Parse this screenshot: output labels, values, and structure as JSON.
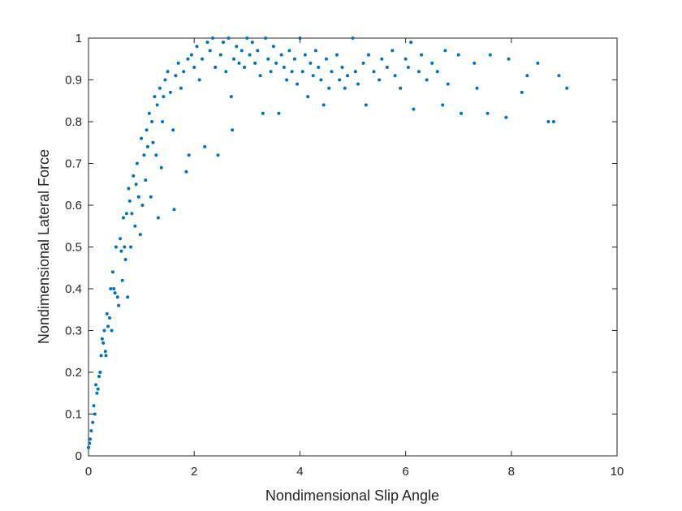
{
  "chart_data": {
    "type": "scatter",
    "title": "",
    "xlabel": "Nondimensional Slip Angle",
    "ylabel": "Nondimensional Lateral Force",
    "xlim": [
      0,
      10
    ],
    "ylim": [
      0,
      1
    ],
    "xticks": [
      0,
      2,
      4,
      6,
      8,
      10
    ],
    "yticks": [
      0,
      0.1,
      0.2,
      0.3,
      0.4,
      0.5,
      0.6,
      0.7,
      0.8,
      0.9,
      1
    ],
    "grid": false,
    "legend": "none",
    "marker_color": "#0072BD",
    "points": [
      [
        0.0,
        0.02
      ],
      [
        0.02,
        0.03
      ],
      [
        0.03,
        0.04
      ],
      [
        0.05,
        0.06
      ],
      [
        0.08,
        0.08
      ],
      [
        0.1,
        0.12
      ],
      [
        0.12,
        0.1
      ],
      [
        0.14,
        0.17
      ],
      [
        0.16,
        0.15
      ],
      [
        0.18,
        0.16
      ],
      [
        0.2,
        0.19
      ],
      [
        0.22,
        0.2
      ],
      [
        0.24,
        0.24
      ],
      [
        0.26,
        0.28
      ],
      [
        0.28,
        0.27
      ],
      [
        0.3,
        0.3
      ],
      [
        0.32,
        0.25
      ],
      [
        0.33,
        0.24
      ],
      [
        0.35,
        0.34
      ],
      [
        0.37,
        0.31
      ],
      [
        0.4,
        0.33
      ],
      [
        0.42,
        0.4
      ],
      [
        0.44,
        0.3
      ],
      [
        0.46,
        0.44
      ],
      [
        0.48,
        0.4
      ],
      [
        0.5,
        0.39
      ],
      [
        0.52,
        0.5
      ],
      [
        0.55,
        0.38
      ],
      [
        0.57,
        0.36
      ],
      [
        0.6,
        0.52
      ],
      [
        0.62,
        0.49
      ],
      [
        0.64,
        0.42
      ],
      [
        0.66,
        0.57
      ],
      [
        0.68,
        0.5
      ],
      [
        0.7,
        0.47
      ],
      [
        0.72,
        0.58
      ],
      [
        0.74,
        0.38
      ],
      [
        0.76,
        0.64
      ],
      [
        0.78,
        0.61
      ],
      [
        0.8,
        0.5
      ],
      [
        0.82,
        0.58
      ],
      [
        0.85,
        0.67
      ],
      [
        0.88,
        0.55
      ],
      [
        0.9,
        0.65
      ],
      [
        0.92,
        0.7
      ],
      [
        0.95,
        0.62
      ],
      [
        0.98,
        0.53
      ],
      [
        1.0,
        0.76
      ],
      [
        1.02,
        0.6
      ],
      [
        1.05,
        0.72
      ],
      [
        1.08,
        0.66
      ],
      [
        1.1,
        0.78
      ],
      [
        1.12,
        0.74
      ],
      [
        1.15,
        0.82
      ],
      [
        1.18,
        0.62
      ],
      [
        1.2,
        0.8
      ],
      [
        1.22,
        0.75
      ],
      [
        1.25,
        0.86
      ],
      [
        1.28,
        0.72
      ],
      [
        1.3,
        0.84
      ],
      [
        1.32,
        0.57
      ],
      [
        1.35,
        0.88
      ],
      [
        1.38,
        0.69
      ],
      [
        1.4,
        0.8
      ],
      [
        1.42,
        0.86
      ],
      [
        1.45,
        0.9
      ],
      [
        1.5,
        0.92
      ],
      [
        1.55,
        0.87
      ],
      [
        1.6,
        0.78
      ],
      [
        1.62,
        0.59
      ],
      [
        1.65,
        0.91
      ],
      [
        1.7,
        0.94
      ],
      [
        1.75,
        0.88
      ],
      [
        1.8,
        0.92
      ],
      [
        1.85,
        0.68
      ],
      [
        1.88,
        0.95
      ],
      [
        1.9,
        0.72
      ],
      [
        1.95,
        0.96
      ],
      [
        2.0,
        0.93
      ],
      [
        2.05,
        0.98
      ],
      [
        2.1,
        0.9
      ],
      [
        2.15,
        0.95
      ],
      [
        2.2,
        0.74
      ],
      [
        2.25,
        0.99
      ],
      [
        2.3,
        0.97
      ],
      [
        2.35,
        1.0
      ],
      [
        2.4,
        0.93
      ],
      [
        2.45,
        0.72
      ],
      [
        2.5,
        0.96
      ],
      [
        2.55,
        0.99
      ],
      [
        2.6,
        0.92
      ],
      [
        2.65,
        1.0
      ],
      [
        2.7,
        0.86
      ],
      [
        2.72,
        0.78
      ],
      [
        2.75,
        0.95
      ],
      [
        2.8,
        0.98
      ],
      [
        2.85,
        0.94
      ],
      [
        2.9,
        0.97
      ],
      [
        2.95,
        0.93
      ],
      [
        3.0,
        1.0
      ],
      [
        3.05,
        0.96
      ],
      [
        3.1,
        0.99
      ],
      [
        3.15,
        0.94
      ],
      [
        3.2,
        0.97
      ],
      [
        3.25,
        0.91
      ],
      [
        3.3,
        0.82
      ],
      [
        3.35,
        1.0
      ],
      [
        3.4,
        0.95
      ],
      [
        3.45,
        0.92
      ],
      [
        3.5,
        0.98
      ],
      [
        3.55,
        0.94
      ],
      [
        3.6,
        0.82
      ],
      [
        3.65,
        0.96
      ],
      [
        3.7,
        0.93
      ],
      [
        3.75,
        0.9
      ],
      [
        3.8,
        0.97
      ],
      [
        3.85,
        0.92
      ],
      [
        3.9,
        0.95
      ],
      [
        3.95,
        0.89
      ],
      [
        4.0,
        1.0
      ],
      [
        4.05,
        0.92
      ],
      [
        4.1,
        0.96
      ],
      [
        4.15,
        0.86
      ],
      [
        4.2,
        0.94
      ],
      [
        4.25,
        0.91
      ],
      [
        4.3,
        0.97
      ],
      [
        4.35,
        0.93
      ],
      [
        4.4,
        0.9
      ],
      [
        4.45,
        0.84
      ],
      [
        4.5,
        0.95
      ],
      [
        4.55,
        0.88
      ],
      [
        4.6,
        0.92
      ],
      [
        4.7,
        0.96
      ],
      [
        4.75,
        0.9
      ],
      [
        4.8,
        0.93
      ],
      [
        4.85,
        0.88
      ],
      [
        4.9,
        0.91
      ],
      [
        5.0,
        1.0
      ],
      [
        5.05,
        0.92
      ],
      [
        5.1,
        0.89
      ],
      [
        5.2,
        0.94
      ],
      [
        5.25,
        0.84
      ],
      [
        5.3,
        0.96
      ],
      [
        5.4,
        0.92
      ],
      [
        5.5,
        0.9
      ],
      [
        5.55,
        0.95
      ],
      [
        5.65,
        0.93
      ],
      [
        5.75,
        0.97
      ],
      [
        5.8,
        0.91
      ],
      [
        5.9,
        0.88
      ],
      [
        6.0,
        0.95
      ],
      [
        6.05,
        0.93
      ],
      [
        6.1,
        0.99
      ],
      [
        6.15,
        0.83
      ],
      [
        6.25,
        0.92
      ],
      [
        6.3,
        0.96
      ],
      [
        6.4,
        0.9
      ],
      [
        6.5,
        0.94
      ],
      [
        6.6,
        0.92
      ],
      [
        6.7,
        0.84
      ],
      [
        6.75,
        0.97
      ],
      [
        6.8,
        0.89
      ],
      [
        7.0,
        0.96
      ],
      [
        7.05,
        0.82
      ],
      [
        7.3,
        0.94
      ],
      [
        7.35,
        0.88
      ],
      [
        7.55,
        0.82
      ],
      [
        7.6,
        0.96
      ],
      [
        7.9,
        0.81
      ],
      [
        7.95,
        0.95
      ],
      [
        8.2,
        0.87
      ],
      [
        8.3,
        0.91
      ],
      [
        8.5,
        0.94
      ],
      [
        8.7,
        0.8
      ],
      [
        8.8,
        0.8
      ],
      [
        8.9,
        0.91
      ],
      [
        9.05,
        0.88
      ]
    ]
  }
}
